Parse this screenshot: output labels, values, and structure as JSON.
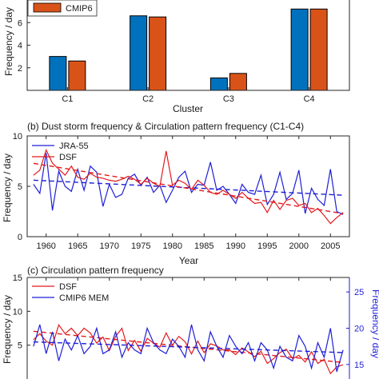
{
  "colors": {
    "blue": "#0072bd",
    "orange": "#d95319",
    "red": "#e31a1c",
    "line_blue": "#1f1fd6",
    "axis": "#262626"
  },
  "chart_data": [
    {
      "type": "bar",
      "title": "",
      "xlabel": "Cluster",
      "ylabel": "Frequency / day",
      "categories": [
        "C1",
        "C2",
        "C3",
        "C4"
      ],
      "ylim": [
        0,
        8
      ],
      "yticks": [
        2,
        4,
        6
      ],
      "series": [
        {
          "name": "",
          "color": "#0072bd",
          "values": [
            3.0,
            6.6,
            1.1,
            7.2
          ]
        },
        {
          "name": "CMIP6",
          "color": "#d95319",
          "values": [
            2.6,
            6.5,
            1.5,
            7.2
          ]
        }
      ],
      "legend": "top-left",
      "grid": false
    },
    {
      "type": "line",
      "title": "(b) Dust storm frequency & Circulation pattern frequency (C1-C4)",
      "xlabel": "Year",
      "ylabel": "Frequency / day",
      "xlim": [
        1957,
        2008
      ],
      "ylim": [
        0,
        10
      ],
      "xticks": [
        1960,
        1965,
        1970,
        1975,
        1980,
        1985,
        1990,
        1995,
        2000,
        2005
      ],
      "yticks": [
        0,
        5,
        10
      ],
      "series": [
        {
          "name": "JRA-55",
          "color": "#1f1fd6",
          "x": [
            1958,
            1959,
            1960,
            1961,
            1962,
            1963,
            1964,
            1965,
            1966,
            1967,
            1968,
            1969,
            1970,
            1971,
            1972,
            1973,
            1974,
            1975,
            1976,
            1977,
            1978,
            1979,
            1980,
            1981,
            1982,
            1983,
            1984,
            1985,
            1986,
            1987,
            1988,
            1989,
            1990,
            1991,
            1992,
            1993,
            1994,
            1995,
            1996,
            1997,
            1998,
            1999,
            2000,
            2001,
            2002,
            2003,
            2004,
            2005,
            2006,
            2007
          ],
          "y": [
            5.2,
            4.3,
            8.3,
            2.6,
            6.5,
            5.0,
            4.5,
            6.7,
            4.6,
            7.0,
            6.4,
            3.0,
            5.2,
            3.9,
            4.2,
            5.8,
            6.2,
            5.1,
            5.9,
            4.4,
            5.1,
            3.4,
            4.6,
            5.9,
            6.5,
            4.4,
            5.2,
            5.1,
            7.4,
            4.6,
            5.0,
            4.2,
            3.3,
            5.2,
            4.4,
            4.2,
            6.1,
            3.2,
            4.2,
            6.4,
            3.7,
            4.3,
            6.6,
            2.3,
            4.8,
            3.7,
            3.1,
            6.7,
            2.5,
            2.2
          ]
        },
        {
          "name": "DSF",
          "color": "#e31a1c",
          "x": [
            1958,
            1959,
            1960,
            1961,
            1962,
            1963,
            1964,
            1965,
            1966,
            1967,
            1968,
            1969,
            1970,
            1971,
            1972,
            1973,
            1974,
            1975,
            1976,
            1977,
            1978,
            1979,
            1980,
            1981,
            1982,
            1983,
            1984,
            1985,
            1986,
            1987,
            1988,
            1989,
            1990,
            1991,
            1992,
            1993,
            1994,
            1995,
            1996,
            1997,
            1998,
            1999,
            2000,
            2001,
            2002,
            2003,
            2004,
            2005,
            2006,
            2007
          ],
          "y": [
            6.1,
            6.6,
            8.6,
            7.3,
            6.7,
            6.1,
            7.0,
            5.9,
            5.7,
            6.3,
            5.9,
            5.8,
            5.6,
            5.5,
            5.7,
            6.0,
            5.7,
            5.2,
            5.8,
            5.3,
            5.0,
            8.5,
            5.1,
            5.6,
            5.3,
            4.7,
            5.6,
            5.1,
            4.4,
            4.2,
            4.6,
            4.2,
            3.8,
            4.4,
            3.8,
            3.3,
            3.4,
            2.4,
            3.6,
            2.7,
            3.6,
            3.8,
            3.1,
            3.3,
            2.4,
            2.8,
            2.1,
            1.3,
            1.9,
            2.4
          ]
        }
      ],
      "legend": "top-left",
      "grid": false
    },
    {
      "type": "line",
      "title": "(c) Circulation pattern frequency",
      "xlabel": "",
      "ylabel": "Frequency / day",
      "ylabel_right": "Frequency / day",
      "xlim": [
        1957,
        2008
      ],
      "ylim": [
        0,
        15
      ],
      "ylim_right": [
        13,
        27
      ],
      "yticks": [
        5,
        10,
        15
      ],
      "yticks_right": [
        15,
        20,
        25
      ],
      "series": [
        {
          "name": "DSF",
          "color": "#e31a1c",
          "x": [
            1958,
            1959,
            1960,
            1961,
            1962,
            1963,
            1964,
            1965,
            1966,
            1967,
            1968,
            1969,
            1970,
            1971,
            1972,
            1973,
            1974,
            1975,
            1976,
            1977,
            1978,
            1979,
            1980,
            1981,
            1982,
            1983,
            1984,
            1985,
            1986,
            1987,
            1988,
            1989,
            1990,
            1991,
            1992,
            1993,
            1994,
            1995,
            1996,
            1997,
            1998,
            1999,
            2000,
            2001,
            2002,
            2003,
            2004,
            2005,
            2006,
            2007
          ],
          "y": [
            5.8,
            6.7,
            5.6,
            5.0,
            8.0,
            6.7,
            7.5,
            6.4,
            7.5,
            6.8,
            5.3,
            6.2,
            4.2,
            6.3,
            7.5,
            4.2,
            5.7,
            4.1,
            6.0,
            5.3,
            4.7,
            6.8,
            5.0,
            6.3,
            5.5,
            3.7,
            5.6,
            3.9,
            5.2,
            4.9,
            4.3,
            4.3,
            3.6,
            4.6,
            4.0,
            3.3,
            4.1,
            2.3,
            3.0,
            3.9,
            4.4,
            3.0,
            3.5,
            2.5,
            4.0,
            2.3,
            2.9,
            0.8,
            1.8,
            2.1
          ]
        },
        {
          "name": "CMIP6 MEM",
          "color": "#1f1fd6",
          "axis": "right",
          "x": [
            1958,
            1959,
            1960,
            1961,
            1962,
            1963,
            1964,
            1965,
            1966,
            1967,
            1968,
            1969,
            1970,
            1971,
            1972,
            1973,
            1974,
            1975,
            1976,
            1977,
            1978,
            1979,
            1980,
            1981,
            1982,
            1983,
            1984,
            1985,
            1986,
            1987,
            1988,
            1989,
            1990,
            1991,
            1992,
            1993,
            1994,
            1995,
            1996,
            1997,
            1998,
            1999,
            2000,
            2001,
            2002,
            2003,
            2004,
            2005,
            2006,
            2007
          ],
          "y": [
            17.5,
            20.5,
            16.5,
            19.5,
            15.5,
            18.5,
            17.0,
            19.0,
            16.5,
            17.5,
            20.0,
            16.5,
            17.0,
            19.5,
            16.0,
            18.0,
            17.0,
            16.5,
            20.0,
            18.0,
            17.0,
            16.5,
            18.5,
            17.5,
            16.0,
            20.5,
            17.0,
            15.5,
            19.5,
            17.5,
            16.0,
            19.0,
            17.5,
            16.5,
            18.0,
            15.5,
            18.0,
            17.0,
            14.5,
            17.5,
            16.0,
            15.5,
            19.0,
            17.5,
            14.5,
            18.0,
            16.0,
            20.0,
            14.0,
            17.0
          ]
        }
      ],
      "legend": "top-left",
      "grid": false
    }
  ]
}
